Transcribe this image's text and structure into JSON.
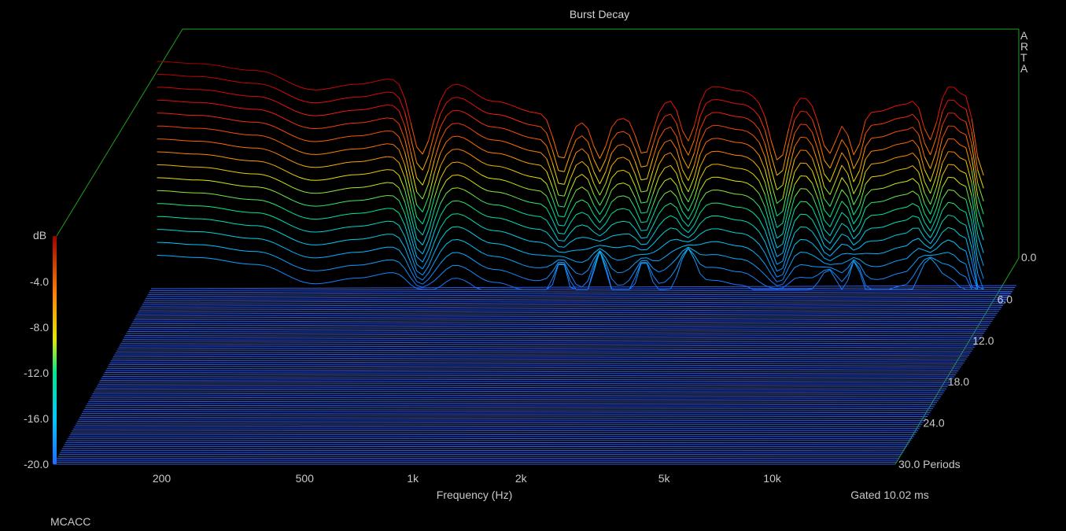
{
  "chart_data": {
    "type": "waterfall",
    "title": "Burst Decay",
    "xlabel": "Frequency (Hz)",
    "zlabel": "dB",
    "x_scale": "log",
    "xlim_hz": [
      100,
      22000
    ],
    "zlim_db": [
      -20,
      0
    ],
    "periods_lim": [
      0,
      30
    ],
    "x_ticks": [
      {
        "hz": 200,
        "label": "200"
      },
      {
        "hz": 500,
        "label": "500"
      },
      {
        "hz": 1000,
        "label": "1k"
      },
      {
        "hz": 2000,
        "label": "2k"
      },
      {
        "hz": 5000,
        "label": "5k"
      },
      {
        "hz": 10000,
        "label": "10k"
      }
    ],
    "z_ticks": [
      "-4.0",
      "-8.0",
      "-12.0",
      "-16.0",
      "-20.0"
    ],
    "z_top_label": "0.0",
    "period_ticks": [
      {
        "p": 6,
        "label": "6.0"
      },
      {
        "p": 12,
        "label": "12.0"
      },
      {
        "p": 18,
        "label": "18.0"
      },
      {
        "p": 24,
        "label": "24.0"
      },
      {
        "p": 30,
        "label": "30.0 Periods"
      }
    ],
    "gated_label": "Gated 10.02 ms",
    "vendor_label": [
      "A",
      "R",
      "T",
      "A"
    ],
    "slices_drawn": 16,
    "front_response_db": [
      {
        "hz": 100,
        "db": 0
      },
      {
        "hz": 130,
        "db": -0.2
      },
      {
        "hz": 190,
        "db": -0.8
      },
      {
        "hz": 280,
        "db": -2.5
      },
      {
        "hz": 370,
        "db": -2.0
      },
      {
        "hz": 470,
        "db": -1.5
      },
      {
        "hz": 600,
        "db": -3.0
      },
      {
        "hz": 700,
        "db": -2.0
      },
      {
        "hz": 900,
        "db": -3.5
      },
      {
        "hz": 1200,
        "db": -4.5
      },
      {
        "hz": 1600,
        "db": -5.2
      },
      {
        "hz": 2000,
        "db": -5.0
      },
      {
        "hz": 2500,
        "db": -4.2
      },
      {
        "hz": 3000,
        "db": -3.0
      },
      {
        "hz": 3800,
        "db": -2.2
      },
      {
        "hz": 4500,
        "db": -2.6
      },
      {
        "hz": 5500,
        "db": -3.8
      },
      {
        "hz": 6500,
        "db": -3.0
      },
      {
        "hz": 7500,
        "db": -3.3
      },
      {
        "hz": 9000,
        "db": -4.2
      },
      {
        "hz": 11000,
        "db": -4.4
      },
      {
        "hz": 13000,
        "db": -3.8
      },
      {
        "hz": 15000,
        "db": -2.3
      },
      {
        "hz": 17500,
        "db": -2.0
      },
      {
        "hz": 19500,
        "db": -3.0
      },
      {
        "hz": 22000,
        "db": -10.0
      }
    ],
    "notches": [
      {
        "hz": 560,
        "db": -20,
        "width_oct": 0.13
      },
      {
        "hz": 1400,
        "db": -17,
        "width_oct": 0.1
      },
      {
        "hz": 1800,
        "db": -16,
        "width_oct": 0.09
      },
      {
        "hz": 2400,
        "db": -17,
        "width_oct": 0.1
      },
      {
        "hz": 3200,
        "db": -16,
        "width_oct": 0.1
      },
      {
        "hz": 5800,
        "db": -20,
        "width_oct": 0.11
      },
      {
        "hz": 8000,
        "db": -18,
        "width_oct": 0.11
      },
      {
        "hz": 9500,
        "db": -17,
        "width_oct": 0.08
      },
      {
        "hz": 15500,
        "db": -17,
        "width_oct": 0.1
      }
    ],
    "floor_color": "#2f5fe8",
    "background": "#000000",
    "frame_color": "#1fa01f",
    "colorbar": [
      "#00c8ff",
      "#00e890",
      "#e8e800",
      "#ff8000",
      "#e81010",
      "#a00000"
    ]
  },
  "footer": {
    "app_label": "MCACC"
  }
}
